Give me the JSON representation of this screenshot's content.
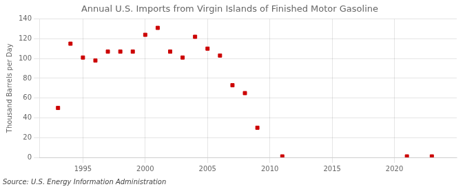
{
  "chart_data": {
    "type": "scatter",
    "title": "Annual U.S. Imports from Virgin Islands of Finished Motor Gasoline",
    "ylabel": "Thousand Barrels per Day",
    "annotations": [
      "Source: U.S. Energy Information Administration"
    ],
    "x": [
      1993,
      1994,
      1995,
      1996,
      1997,
      1998,
      1999,
      2000,
      2001,
      2002,
      2003,
      2004,
      2005,
      2006,
      2007,
      2008,
      2009,
      2011,
      2021,
      2023
    ],
    "values": [
      50,
      115,
      101,
      98,
      107,
      107,
      107,
      124,
      131,
      107,
      101,
      122,
      110,
      103,
      73,
      65,
      30,
      1,
      1,
      1
    ],
    "color": "#cc0000",
    "marker": "square",
    "xlim": [
      1991.5,
      2025
    ],
    "ylim": [
      0,
      140
    ],
    "xticks": [
      1995,
      2000,
      2005,
      2010,
      2015,
      2020
    ],
    "yticks": [
      0,
      20,
      40,
      60,
      80,
      100,
      120,
      140
    ],
    "grid": true
  }
}
